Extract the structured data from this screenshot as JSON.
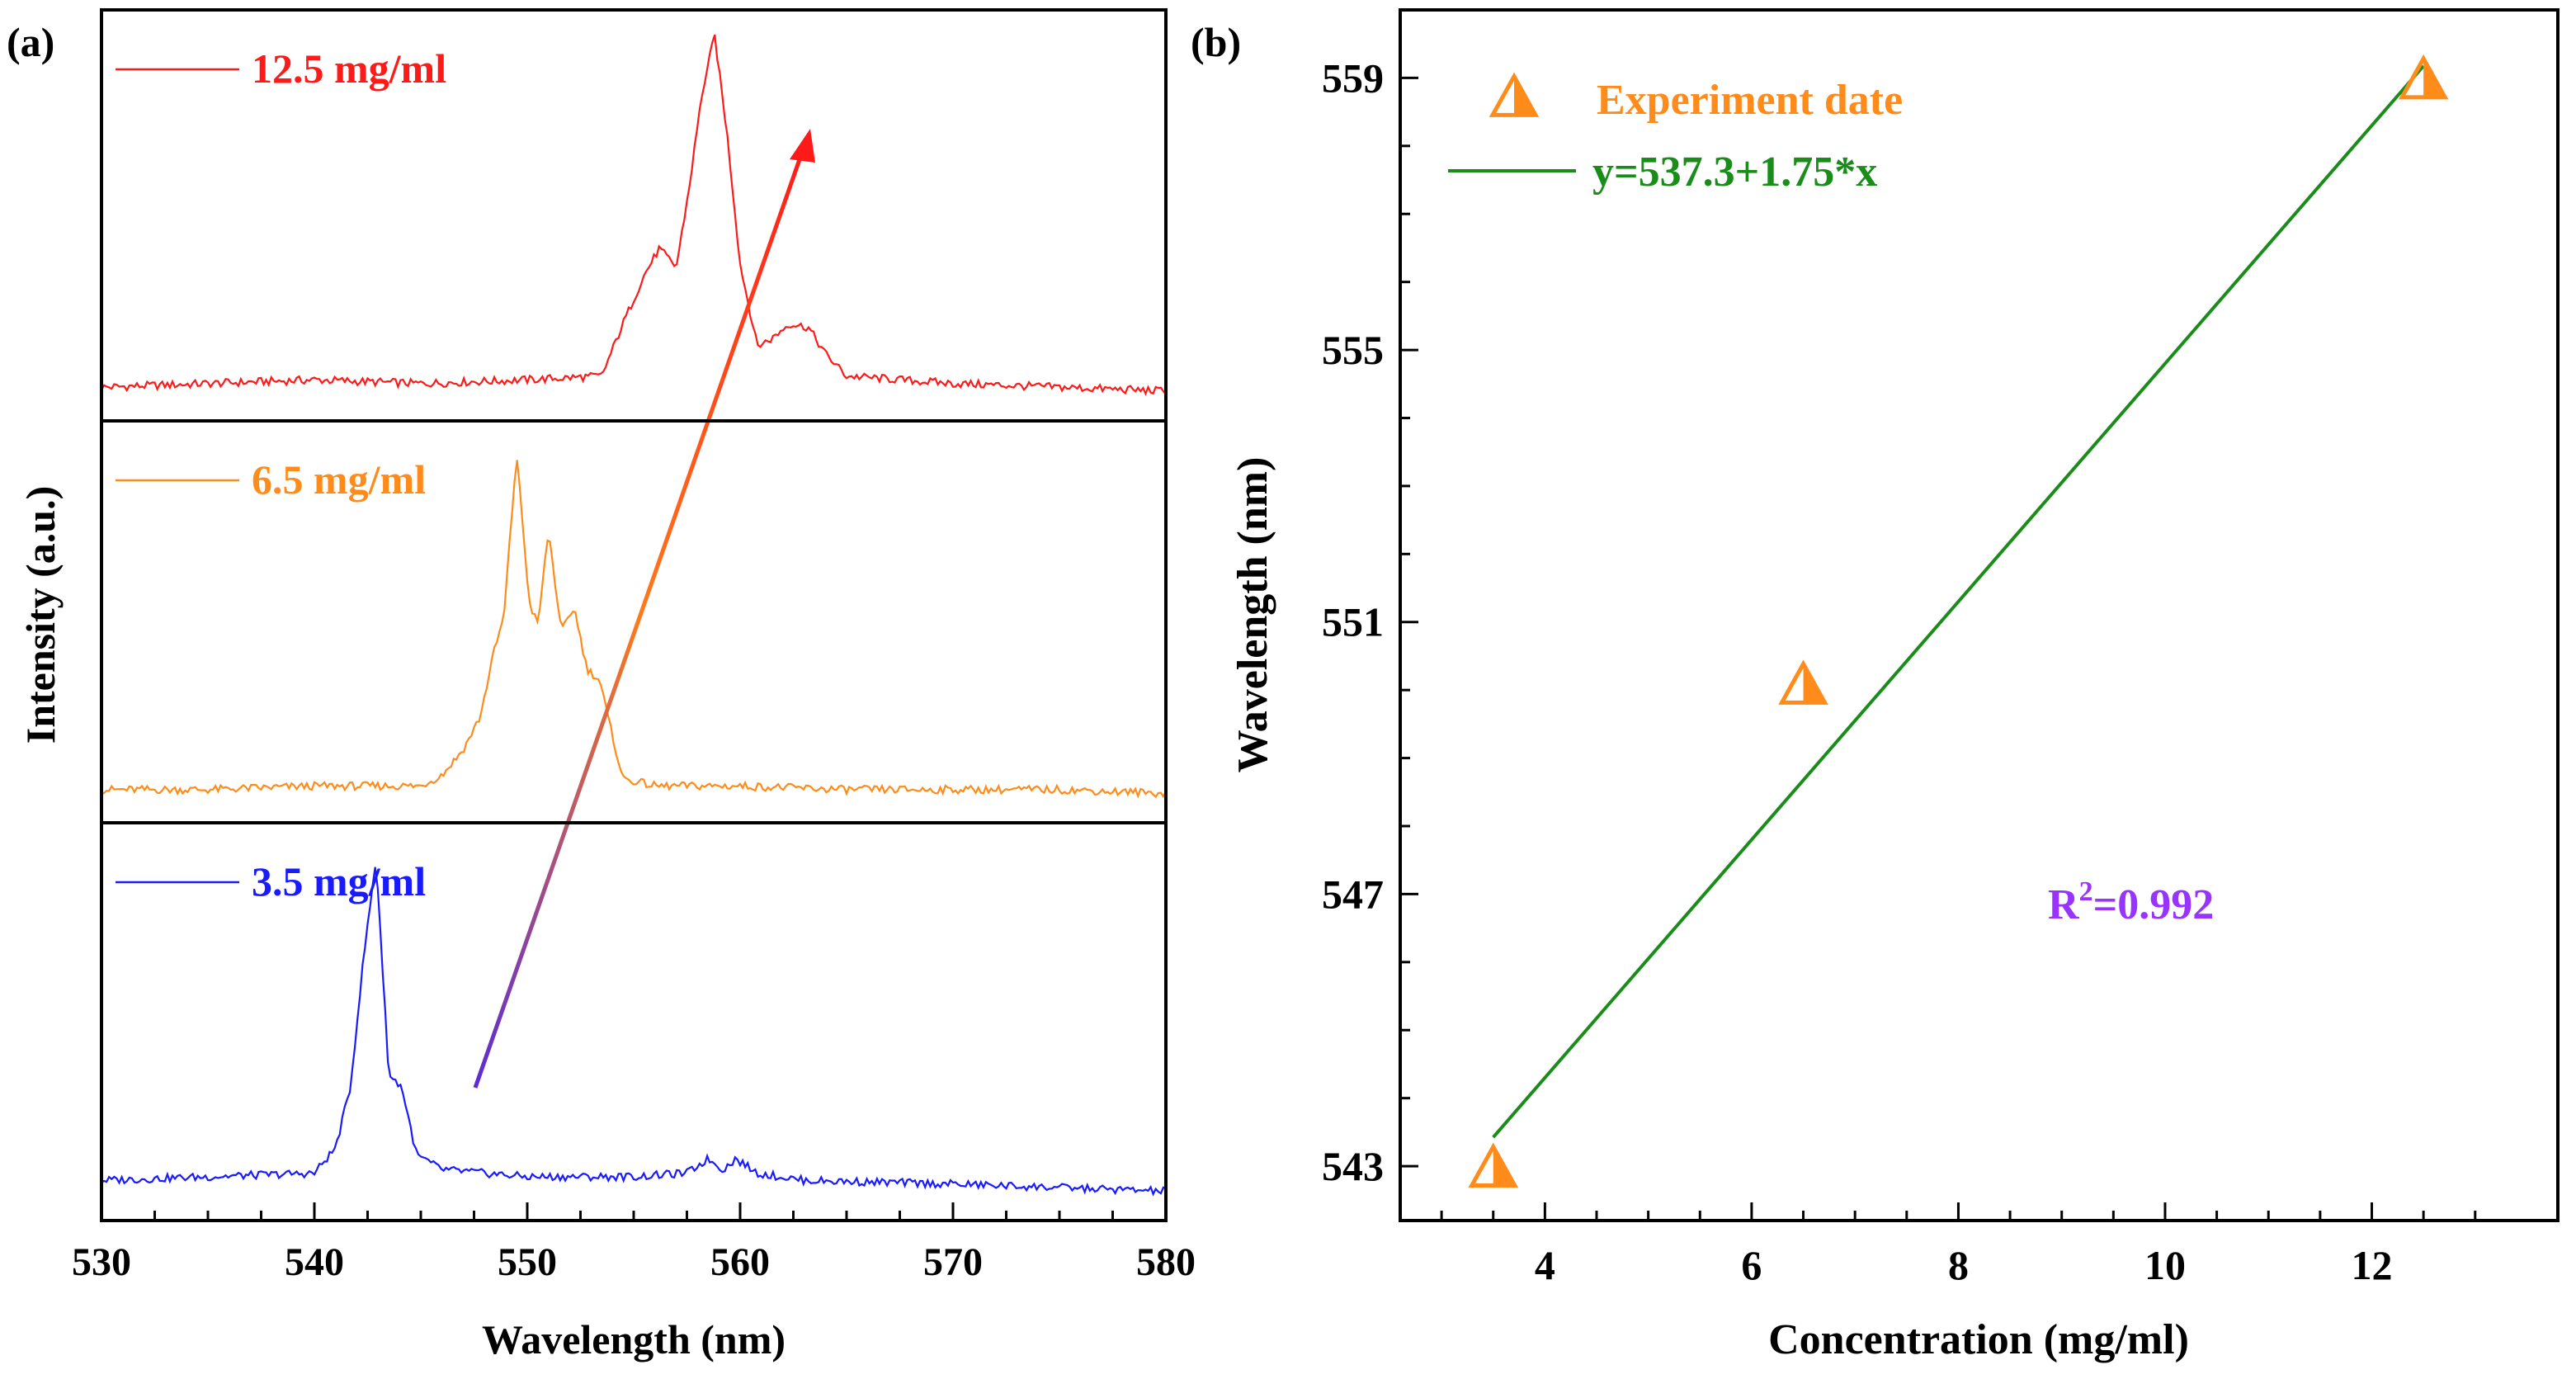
{
  "chart_data": [
    {
      "panel_label": "(a)",
      "type": "line",
      "title": "",
      "xlabel": "Wavelength (nm)",
      "ylabel": "Intensity (a.u.)",
      "xlim": [
        530,
        580
      ],
      "xticks": [
        530,
        540,
        550,
        560,
        570,
        580
      ],
      "xtick_labels": [
        "530",
        "540",
        "550",
        "560",
        "570",
        "580"
      ],
      "y_units": "normalized intensity (0-1 within each stacked sub-panel)",
      "legend_location": "top-left of each stacked sub-panel",
      "annotation": "arrow from 547.5 nm (bottom) to 563 nm (top) indicating red shift with concentration",
      "series": [
        {
          "name": "12.5 mg/ml",
          "color": "#ff1a1a",
          "x": [
            530,
            535,
            540,
            545,
            550,
            553.5,
            554.5,
            555.5,
            556.2,
            557,
            557.6,
            558.2,
            558.8,
            559.4,
            560,
            560.8,
            561.5,
            562.3,
            563.2,
            564,
            565,
            570,
            575,
            580
          ],
          "y": [
            0.05,
            0.06,
            0.07,
            0.06,
            0.07,
            0.08,
            0.22,
            0.35,
            0.42,
            0.37,
            0.58,
            0.83,
            0.99,
            0.72,
            0.38,
            0.16,
            0.18,
            0.22,
            0.21,
            0.14,
            0.08,
            0.06,
            0.05,
            0.04
          ]
        },
        {
          "name": "6.5 mg/ml",
          "color": "#ff8c1a",
          "x": [
            530,
            535,
            540,
            545,
            546,
            547,
            547.8,
            548.4,
            548.9,
            549.5,
            550.1,
            550.5,
            551,
            551.6,
            552.2,
            552.8,
            553.4,
            553.9,
            554.5,
            556,
            560,
            565,
            570,
            575,
            580
          ],
          "y": [
            0.05,
            0.05,
            0.06,
            0.06,
            0.09,
            0.16,
            0.25,
            0.42,
            0.52,
            0.97,
            0.56,
            0.5,
            0.76,
            0.48,
            0.55,
            0.38,
            0.35,
            0.22,
            0.08,
            0.06,
            0.06,
            0.05,
            0.05,
            0.05,
            0.04
          ]
        },
        {
          "name": "3.5 mg/ml",
          "color": "#1a1aff",
          "x": [
            530,
            535,
            540,
            541,
            541.7,
            542.3,
            542.9,
            543.5,
            544.1,
            544.8,
            546,
            550,
            555,
            557.5,
            558.5,
            559.2,
            559.8,
            560.8,
            563,
            570,
            575,
            580
          ],
          "y": [
            0.07,
            0.08,
            0.09,
            0.16,
            0.33,
            0.68,
            0.96,
            0.36,
            0.33,
            0.14,
            0.1,
            0.08,
            0.08,
            0.09,
            0.13,
            0.1,
            0.13,
            0.09,
            0.07,
            0.06,
            0.05,
            0.04
          ]
        }
      ]
    },
    {
      "panel_label": "(b)",
      "type": "scatter",
      "title": "",
      "xlabel": "Concentration (mg/ml)",
      "ylabel": "Wavelength (nm)",
      "xlim": [
        2.6,
        13.8
      ],
      "ylim": [
        542.2,
        560
      ],
      "xticks": [
        4,
        6,
        8,
        10,
        12
      ],
      "xtick_labels": [
        "4",
        "6",
        "8",
        "10",
        "12"
      ],
      "yticks": [
        543,
        547,
        551,
        555,
        559
      ],
      "ytick_labels": [
        "543",
        "547",
        "551",
        "555",
        "559"
      ],
      "legend_location": "top-left",
      "series": [
        {
          "name": "Experiment date",
          "marker": "triangle",
          "color": "#ff8c1a",
          "x": [
            3.5,
            6.5,
            12.5
          ],
          "y": [
            543,
            550.1,
            559
          ]
        }
      ],
      "fit": {
        "name": "y=537.3+1.75*x",
        "color": "#1a8c1a",
        "intercept": 537.3,
        "slope": 1.75,
        "x_range": [
          3.5,
          12.5
        ]
      },
      "annotation_r2_prefix": "R",
      "annotation_r2_sup": "2",
      "annotation_r2_value": "=0.992",
      "annotation_r2_color": "#9933ff"
    }
  ]
}
